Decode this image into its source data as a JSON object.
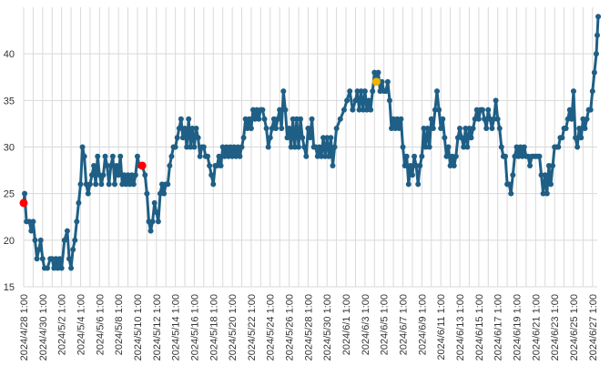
{
  "chart_data": {
    "type": "line",
    "title": "",
    "xlabel": "",
    "ylabel": "",
    "ylim": [
      15,
      45
    ],
    "yticks": [
      15,
      20,
      25,
      30,
      35,
      40
    ],
    "x_tick_labels": [
      "2024/4/28 1:00",
      "2024/4/30 1:00",
      "2024/5/2 1:00",
      "2024/5/4 1:00",
      "2024/5/6 1:00",
      "2024/5/8 1:00",
      "2024/5/10 1:00",
      "2024/5/12 1:00",
      "2024/5/14 1:00",
      "2024/5/16 1:00",
      "2024/5/18 1:00",
      "2024/5/20 1:00",
      "2024/5/22 1:00",
      "2024/5/24 1:00",
      "2024/5/26 1:00",
      "2024/5/28 1:00",
      "2024/5/30 1:00",
      "2024/6/1 1:00",
      "2024/6/3 1:00",
      "2024/6/5 1:00",
      "2024/6/7 1:00",
      "2024/6/9 1:00",
      "2024/6/11 1:00",
      "2024/6/13 1:00",
      "2024/6/15 1:00",
      "2024/6/17 1:00",
      "2024/6/19 1:00",
      "2024/6/21 1:00",
      "2024/6/23 1:00",
      "2024/6/25 1:00",
      "2024/6/27 1:00"
    ],
    "x_start_day": 0,
    "x_end_day": 60.5,
    "grid": true,
    "series": [
      {
        "name": "value",
        "color": "#1f5f86",
        "points": [
          [
            0,
            24
          ],
          [
            0.1,
            25
          ],
          [
            0.3,
            22
          ],
          [
            0.6,
            22
          ],
          [
            0.8,
            21
          ],
          [
            1.0,
            22
          ],
          [
            1.2,
            20
          ],
          [
            1.4,
            18
          ],
          [
            1.6,
            19
          ],
          [
            1.8,
            20
          ],
          [
            2.0,
            18
          ],
          [
            2.2,
            17
          ],
          [
            2.5,
            17
          ],
          [
            2.8,
            18
          ],
          [
            3.0,
            18
          ],
          [
            3.2,
            17
          ],
          [
            3.4,
            18
          ],
          [
            3.6,
            17
          ],
          [
            3.8,
            18
          ],
          [
            4.0,
            17
          ],
          [
            4.3,
            20
          ],
          [
            4.6,
            21
          ],
          [
            4.8,
            18
          ],
          [
            5.0,
            17
          ],
          [
            5.2,
            19
          ],
          [
            5.4,
            20
          ],
          [
            5.6,
            22
          ],
          [
            5.8,
            24
          ],
          [
            6.0,
            26
          ],
          [
            6.2,
            30
          ],
          [
            6.4,
            29
          ],
          [
            6.6,
            26
          ],
          [
            6.8,
            25
          ],
          [
            7.0,
            26
          ],
          [
            7.2,
            27
          ],
          [
            7.4,
            28
          ],
          [
            7.6,
            26
          ],
          [
            7.8,
            29
          ],
          [
            8.0,
            27
          ],
          [
            8.2,
            26
          ],
          [
            8.4,
            27
          ],
          [
            8.6,
            29
          ],
          [
            8.8,
            28
          ],
          [
            9.0,
            26
          ],
          [
            9.2,
            28
          ],
          [
            9.4,
            29
          ],
          [
            9.6,
            26
          ],
          [
            9.8,
            28
          ],
          [
            10.0,
            27
          ],
          [
            10.2,
            29
          ],
          [
            10.4,
            26
          ],
          [
            10.6,
            27
          ],
          [
            10.8,
            26
          ],
          [
            11.0,
            27
          ],
          [
            11.2,
            26
          ],
          [
            11.4,
            27
          ],
          [
            11.6,
            26
          ],
          [
            11.8,
            27
          ],
          [
            12.0,
            29
          ],
          [
            12.2,
            28
          ],
          [
            12.5,
            28
          ],
          [
            12.8,
            27
          ],
          [
            13.0,
            25
          ],
          [
            13.2,
            22
          ],
          [
            13.4,
            21
          ],
          [
            13.6,
            22
          ],
          [
            13.8,
            24
          ],
          [
            14.0,
            23
          ],
          [
            14.2,
            22
          ],
          [
            14.4,
            25
          ],
          [
            14.6,
            26
          ],
          [
            14.8,
            25
          ],
          [
            15.0,
            26
          ],
          [
            15.2,
            26
          ],
          [
            15.4,
            28
          ],
          [
            15.6,
            29
          ],
          [
            15.8,
            30
          ],
          [
            16.0,
            30
          ],
          [
            16.2,
            31
          ],
          [
            16.4,
            32
          ],
          [
            16.6,
            33
          ],
          [
            16.8,
            31
          ],
          [
            17.0,
            32
          ],
          [
            17.2,
            30
          ],
          [
            17.4,
            33
          ],
          [
            17.6,
            30
          ],
          [
            17.8,
            32
          ],
          [
            18.0,
            30
          ],
          [
            18.2,
            32
          ],
          [
            18.4,
            31
          ],
          [
            18.6,
            29
          ],
          [
            18.8,
            30
          ],
          [
            19.0,
            30
          ],
          [
            19.2,
            29
          ],
          [
            19.4,
            29
          ],
          [
            19.6,
            28
          ],
          [
            19.8,
            27
          ],
          [
            20.0,
            26
          ],
          [
            20.2,
            28
          ],
          [
            20.4,
            28
          ],
          [
            20.6,
            29
          ],
          [
            20.8,
            28
          ],
          [
            21.0,
            30
          ],
          [
            21.2,
            29
          ],
          [
            21.4,
            30
          ],
          [
            21.6,
            29
          ],
          [
            21.8,
            30
          ],
          [
            22.0,
            29
          ],
          [
            22.2,
            30
          ],
          [
            22.4,
            29
          ],
          [
            22.6,
            30
          ],
          [
            22.8,
            29
          ],
          [
            23.0,
            30
          ],
          [
            23.2,
            31
          ],
          [
            23.4,
            33
          ],
          [
            23.6,
            32
          ],
          [
            23.8,
            33
          ],
          [
            24.0,
            32
          ],
          [
            24.2,
            34
          ],
          [
            24.4,
            33
          ],
          [
            24.6,
            34
          ],
          [
            24.8,
            33
          ],
          [
            25.0,
            34
          ],
          [
            25.2,
            34
          ],
          [
            25.4,
            33
          ],
          [
            25.6,
            32
          ],
          [
            25.8,
            30
          ],
          [
            26.0,
            31
          ],
          [
            26.2,
            32
          ],
          [
            26.4,
            33
          ],
          [
            26.6,
            32
          ],
          [
            26.8,
            33
          ],
          [
            27.0,
            34
          ],
          [
            27.2,
            32
          ],
          [
            27.4,
            36
          ],
          [
            27.6,
            34
          ],
          [
            27.8,
            31
          ],
          [
            28.0,
            32
          ],
          [
            28.2,
            30
          ],
          [
            28.4,
            33
          ],
          [
            28.6,
            30
          ],
          [
            28.8,
            33
          ],
          [
            29.0,
            30
          ],
          [
            29.2,
            33
          ],
          [
            29.4,
            31
          ],
          [
            29.6,
            30
          ],
          [
            29.8,
            29
          ],
          [
            30.0,
            32
          ],
          [
            30.2,
            31
          ],
          [
            30.4,
            33
          ],
          [
            30.6,
            30
          ],
          [
            30.8,
            30
          ],
          [
            31.0,
            29
          ],
          [
            31.2,
            30
          ],
          [
            31.4,
            29
          ],
          [
            31.6,
            31
          ],
          [
            31.8,
            29
          ],
          [
            32.0,
            31
          ],
          [
            32.2,
            29
          ],
          [
            32.4,
            31
          ],
          [
            32.6,
            28
          ],
          [
            32.8,
            30
          ],
          [
            33.0,
            32
          ],
          [
            33.4,
            33
          ],
          [
            33.8,
            34
          ],
          [
            34.1,
            35
          ],
          [
            34.4,
            36
          ],
          [
            34.7,
            34
          ],
          [
            35.0,
            35
          ],
          [
            35.2,
            36
          ],
          [
            35.4,
            34
          ],
          [
            35.6,
            36
          ],
          [
            35.8,
            34
          ],
          [
            36.0,
            36
          ],
          [
            36.2,
            34
          ],
          [
            36.4,
            35
          ],
          [
            36.6,
            34
          ],
          [
            36.8,
            36
          ],
          [
            37.0,
            38
          ],
          [
            37.2,
            37
          ],
          [
            37.4,
            38
          ],
          [
            37.6,
            36
          ],
          [
            37.8,
            37
          ],
          [
            38.0,
            36
          ],
          [
            38.2,
            36
          ],
          [
            38.4,
            37
          ],
          [
            38.6,
            35
          ],
          [
            38.8,
            32
          ],
          [
            39.0,
            33
          ],
          [
            39.2,
            32
          ],
          [
            39.4,
            33
          ],
          [
            39.6,
            32
          ],
          [
            39.8,
            33
          ],
          [
            40.0,
            30
          ],
          [
            40.2,
            28
          ],
          [
            40.4,
            29
          ],
          [
            40.6,
            26
          ],
          [
            40.8,
            28
          ],
          [
            41.0,
            27
          ],
          [
            41.2,
            29
          ],
          [
            41.4,
            28
          ],
          [
            41.6,
            26
          ],
          [
            41.8,
            28
          ],
          [
            42.0,
            29
          ],
          [
            42.2,
            32
          ],
          [
            42.4,
            30
          ],
          [
            42.6,
            32
          ],
          [
            42.8,
            30
          ],
          [
            43.0,
            33
          ],
          [
            43.2,
            32
          ],
          [
            43.4,
            34
          ],
          [
            43.6,
            36
          ],
          [
            43.8,
            34
          ],
          [
            44.0,
            32
          ],
          [
            44.2,
            33
          ],
          [
            44.4,
            31
          ],
          [
            44.6,
            29
          ],
          [
            44.8,
            30
          ],
          [
            45.0,
            28
          ],
          [
            45.2,
            29
          ],
          [
            45.4,
            28
          ],
          [
            45.6,
            29
          ],
          [
            45.8,
            31
          ],
          [
            46.0,
            32
          ],
          [
            46.2,
            31
          ],
          [
            46.4,
            30
          ],
          [
            46.6,
            32
          ],
          [
            46.8,
            30
          ],
          [
            47.0,
            32
          ],
          [
            47.2,
            31
          ],
          [
            47.4,
            32
          ],
          [
            47.6,
            33
          ],
          [
            47.8,
            34
          ],
          [
            48.0,
            33
          ],
          [
            48.2,
            34
          ],
          [
            48.4,
            34
          ],
          [
            48.6,
            33
          ],
          [
            48.8,
            32
          ],
          [
            49.0,
            34
          ],
          [
            49.2,
            33
          ],
          [
            49.4,
            32
          ],
          [
            49.6,
            33
          ],
          [
            49.8,
            35
          ],
          [
            50.0,
            33
          ],
          [
            50.2,
            32
          ],
          [
            50.4,
            30
          ],
          [
            50.6,
            29
          ],
          [
            50.8,
            29
          ],
          [
            51.0,
            26
          ],
          [
            51.2,
            26
          ],
          [
            51.4,
            25
          ],
          [
            51.6,
            27
          ],
          [
            51.8,
            29
          ],
          [
            52.0,
            30
          ],
          [
            52.2,
            29
          ],
          [
            52.4,
            30
          ],
          [
            52.6,
            29
          ],
          [
            52.8,
            30
          ],
          [
            53.0,
            29
          ],
          [
            53.2,
            29
          ],
          [
            53.4,
            28
          ],
          [
            53.6,
            29
          ],
          [
            53.8,
            29
          ],
          [
            54.0,
            29
          ],
          [
            54.2,
            29
          ],
          [
            54.4,
            29
          ],
          [
            54.6,
            27
          ],
          [
            54.8,
            25
          ],
          [
            55.0,
            27
          ],
          [
            55.2,
            25
          ],
          [
            55.4,
            28
          ],
          [
            55.6,
            26
          ],
          [
            55.8,
            28
          ],
          [
            56.0,
            30
          ],
          [
            56.2,
            30
          ],
          [
            56.4,
            30
          ],
          [
            56.6,
            31
          ],
          [
            56.8,
            31
          ],
          [
            57.0,
            32
          ],
          [
            57.2,
            32
          ],
          [
            57.4,
            33
          ],
          [
            57.6,
            34
          ],
          [
            57.8,
            33
          ],
          [
            58.0,
            36
          ],
          [
            58.2,
            31
          ],
          [
            58.4,
            30
          ],
          [
            58.6,
            32
          ],
          [
            58.8,
            31
          ],
          [
            59.0,
            33
          ],
          [
            59.2,
            32
          ],
          [
            59.4,
            33
          ],
          [
            59.6,
            34
          ],
          [
            59.8,
            34
          ],
          [
            60.0,
            36
          ],
          [
            60.2,
            38
          ],
          [
            60.4,
            40
          ],
          [
            60.5,
            42
          ],
          [
            60.6,
            44
          ]
        ]
      }
    ],
    "highlighted_points": [
      {
        "x": 0,
        "y": 24,
        "color": "#ff0000"
      },
      {
        "x": 12.5,
        "y": 28,
        "color": "#ff0000"
      },
      {
        "x": 37.2,
        "y": 37,
        "color": "#f0b400"
      }
    ]
  }
}
